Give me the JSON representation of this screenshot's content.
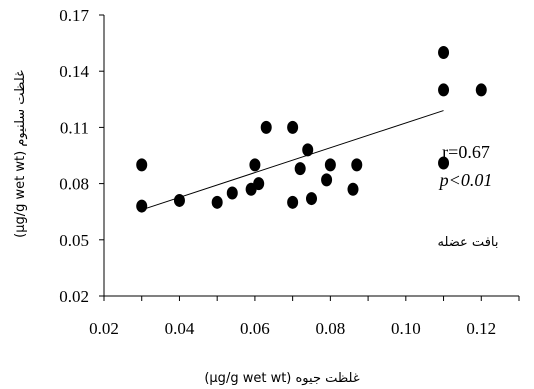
{
  "chart_data": {
    "type": "scatter",
    "title": "",
    "xlabel": "(µg/g wet wt) غلظت جیوه",
    "ylabel": "(µg/g wet wt) غلظت سلنیوم",
    "xlim": [
      0.02,
      0.13
    ],
    "ylim": [
      0.02,
      0.17
    ],
    "x_ticks": [
      "0.02",
      "0.04",
      "0.06",
      "0.08",
      "0.10",
      "0.12"
    ],
    "y_ticks": [
      "0.02",
      "0.05",
      "0.08",
      "0.11",
      "0.14",
      "0.17"
    ],
    "grid": false,
    "legend": "none",
    "points": [
      {
        "x": 0.03,
        "y": 0.09
      },
      {
        "x": 0.03,
        "y": 0.068
      },
      {
        "x": 0.04,
        "y": 0.071
      },
      {
        "x": 0.05,
        "y": 0.07
      },
      {
        "x": 0.054,
        "y": 0.075
      },
      {
        "x": 0.059,
        "y": 0.077
      },
      {
        "x": 0.06,
        "y": 0.09
      },
      {
        "x": 0.061,
        "y": 0.08
      },
      {
        "x": 0.063,
        "y": 0.11
      },
      {
        "x": 0.07,
        "y": 0.11
      },
      {
        "x": 0.07,
        "y": 0.07
      },
      {
        "x": 0.072,
        "y": 0.088
      },
      {
        "x": 0.074,
        "y": 0.098
      },
      {
        "x": 0.075,
        "y": 0.072
      },
      {
        "x": 0.079,
        "y": 0.082
      },
      {
        "x": 0.08,
        "y": 0.09
      },
      {
        "x": 0.086,
        "y": 0.077
      },
      {
        "x": 0.087,
        "y": 0.09
      },
      {
        "x": 0.11,
        "y": 0.15
      },
      {
        "x": 0.11,
        "y": 0.13
      },
      {
        "x": 0.11,
        "y": 0.091
      },
      {
        "x": 0.12,
        "y": 0.13
      }
    ],
    "trendline": {
      "x": [
        0.03,
        0.11
      ],
      "y": [
        0.066,
        0.119
      ]
    },
    "annotations": {
      "r": "r=0.67",
      "p": "p<0.01",
      "tissue": "بافت عضله"
    },
    "colors": {
      "marker": "#000000",
      "line": "#000000",
      "axis": "#000000"
    }
  }
}
